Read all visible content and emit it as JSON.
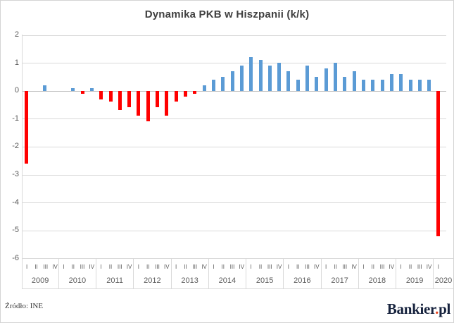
{
  "title": "Dynamika PKB w Hiszpanii (k/k)",
  "source_note": "Źródło: INE",
  "logo": {
    "text": "Bankier",
    "dot": ".",
    "suffix": "pl"
  },
  "colors": {
    "positive_bar": "#5b9bd5",
    "negative_bar": "#ff0000",
    "gridline": "#d9d9d9",
    "zero_line": "#bfbfbf",
    "axis_text": "#595959",
    "title_text": "#404040",
    "logo_navy": "#17233e",
    "logo_dot": "#e8441e"
  },
  "chart_data": {
    "type": "bar",
    "title": "Dynamika PKB w Hiszpanii (k/k)",
    "xlabel": "",
    "ylabel": "",
    "ylim": [
      -6,
      2
    ],
    "yticks": [
      2,
      1,
      0,
      -1,
      -2,
      -3,
      -4,
      -5,
      -6
    ],
    "grid": true,
    "legend": "none",
    "quarter_labels": [
      "I",
      "II",
      "III",
      "IV"
    ],
    "years": [
      {
        "year": "2009",
        "values": [
          -2.6,
          0.0,
          0.2,
          0.0
        ]
      },
      {
        "year": "2010",
        "values": [
          0.0,
          0.1,
          -0.1,
          0.1
        ]
      },
      {
        "year": "2011",
        "values": [
          -0.3,
          -0.4,
          -0.7,
          -0.6
        ]
      },
      {
        "year": "2012",
        "values": [
          -0.9,
          -1.1,
          -0.6,
          -0.9
        ]
      },
      {
        "year": "2013",
        "values": [
          -0.4,
          -0.2,
          -0.1,
          0.2
        ]
      },
      {
        "year": "2014",
        "values": [
          0.4,
          0.5,
          0.7,
          0.9
        ]
      },
      {
        "year": "2015",
        "values": [
          1.2,
          1.1,
          0.9,
          1.0
        ]
      },
      {
        "year": "2016",
        "values": [
          0.7,
          0.4,
          0.9,
          0.5
        ]
      },
      {
        "year": "2017",
        "values": [
          0.8,
          1.0,
          0.5,
          0.7
        ]
      },
      {
        "year": "2018",
        "values": [
          0.4,
          0.4,
          0.4,
          0.6
        ]
      },
      {
        "year": "2019",
        "values": [
          0.6,
          0.4,
          0.4,
          0.4
        ]
      },
      {
        "year": "2020",
        "values": [
          -5.2
        ]
      }
    ],
    "color_rule": "negative values red, positive values blue"
  }
}
